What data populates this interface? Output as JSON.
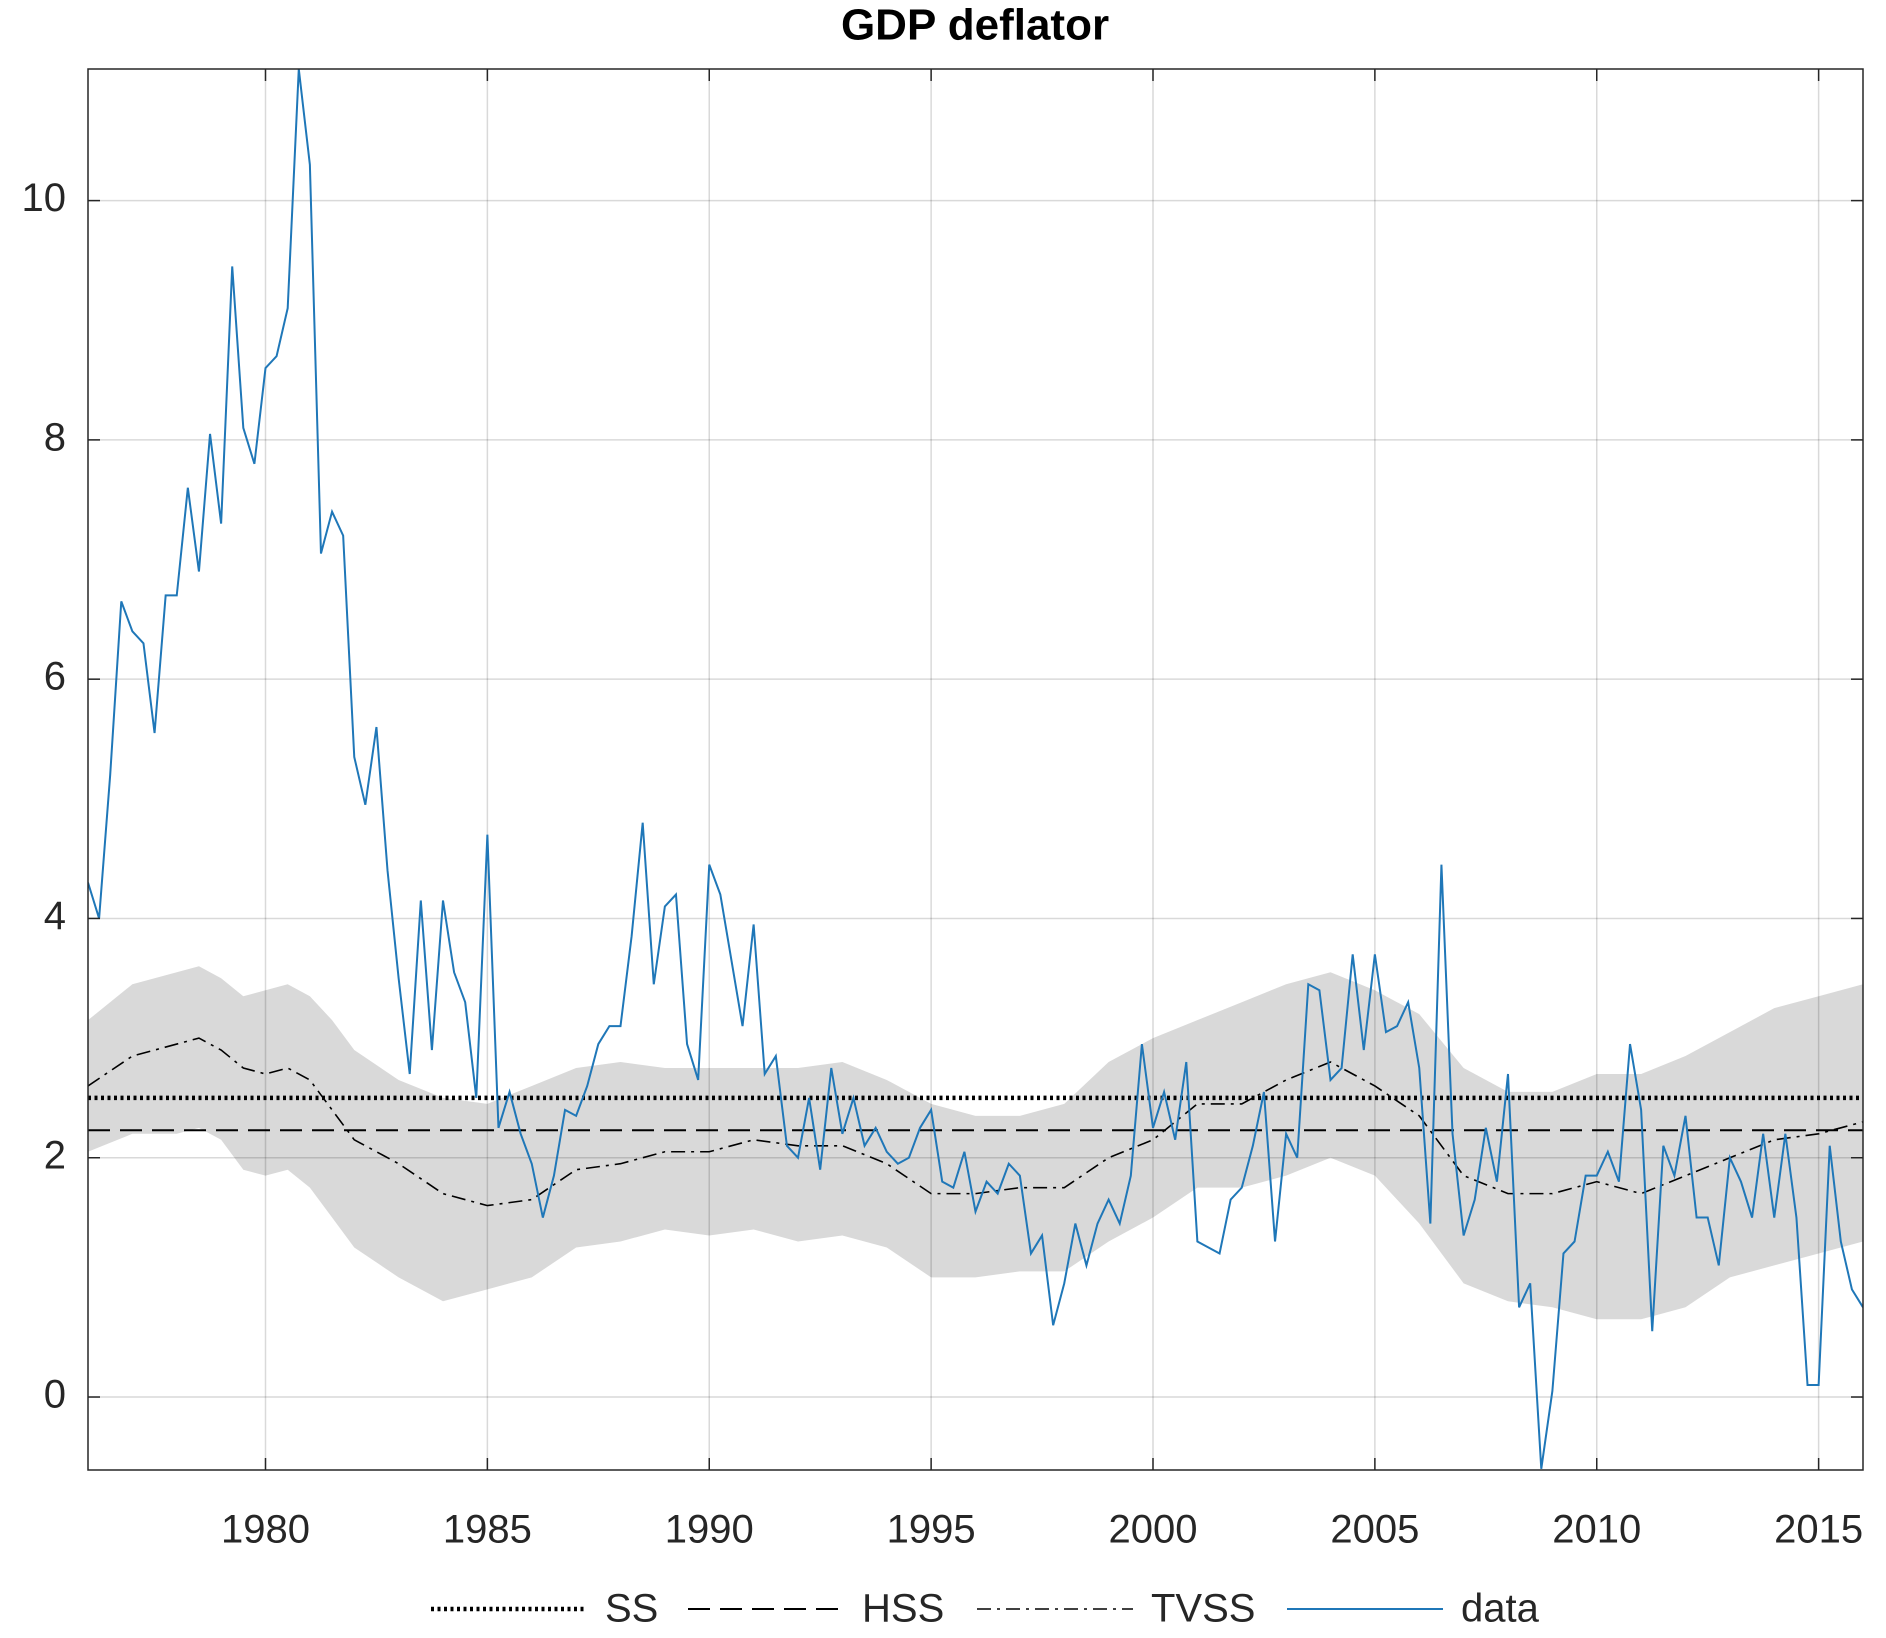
{
  "chart_data": {
    "type": "line",
    "title": "GDP deflator",
    "xlim": [
      1976,
      2016
    ],
    "ylim": [
      -0.61,
      11.1
    ],
    "xticks": [
      1980,
      1985,
      1990,
      1995,
      2000,
      2005,
      2010,
      2015
    ],
    "yticks": [
      0,
      2,
      4,
      6,
      8,
      10
    ],
    "grid": true,
    "legend": "bottom",
    "band": {
      "color": "#d9d9d9",
      "x": [
        1976,
        1977,
        1978,
        1978.5,
        1979,
        1979.5,
        1980,
        1980.5,
        1981,
        1981.5,
        1982,
        1983,
        1984,
        1985,
        1986,
        1987,
        1988,
        1989,
        1990,
        1991,
        1992,
        1993,
        1994,
        1995,
        1996,
        1997,
        1998,
        1999,
        2000,
        2001,
        2002,
        2003,
        2004,
        2005,
        2006,
        2007,
        2008,
        2009,
        2010,
        2011,
        2012,
        2013,
        2014,
        2015,
        2016
      ],
      "upper": [
        3.15,
        3.45,
        3.55,
        3.6,
        3.5,
        3.35,
        3.4,
        3.45,
        3.35,
        3.15,
        2.9,
        2.65,
        2.5,
        2.45,
        2.6,
        2.75,
        2.8,
        2.75,
        2.75,
        2.75,
        2.75,
        2.8,
        2.65,
        2.45,
        2.35,
        2.35,
        2.45,
        2.8,
        3.0,
        3.15,
        3.3,
        3.45,
        3.55,
        3.4,
        3.2,
        2.75,
        2.55,
        2.55,
        2.7,
        2.7,
        2.85,
        3.05,
        3.25,
        3.35,
        3.45
      ],
      "lower": [
        2.05,
        2.2,
        2.2,
        2.25,
        2.15,
        1.9,
        1.85,
        1.9,
        1.75,
        1.5,
        1.25,
        1.0,
        0.8,
        0.9,
        1.0,
        1.25,
        1.3,
        1.4,
        1.35,
        1.4,
        1.3,
        1.35,
        1.25,
        1.0,
        1.0,
        1.05,
        1.05,
        1.3,
        1.5,
        1.75,
        1.75,
        1.85,
        2.0,
        1.85,
        1.45,
        0.95,
        0.8,
        0.75,
        0.65,
        0.65,
        0.75,
        1.0,
        1.1,
        1.2,
        1.3
      ]
    },
    "series": [
      {
        "name": "SS",
        "color": "#000000",
        "style": "dotted",
        "x": [
          1976,
          2016
        ],
        "values": [
          2.5,
          2.5
        ]
      },
      {
        "name": "HSS",
        "color": "#000000",
        "style": "dashed",
        "x": [
          1976,
          2016
        ],
        "values": [
          2.23,
          2.23
        ]
      },
      {
        "name": "TVSS",
        "color": "#000000",
        "style": "dashdot",
        "x": [
          1976,
          1977,
          1978,
          1978.5,
          1979,
          1979.5,
          1980,
          1980.5,
          1981,
          1981.5,
          1982,
          1983,
          1984,
          1985,
          1986,
          1987,
          1988,
          1989,
          1990,
          1991,
          1992,
          1993,
          1994,
          1995,
          1996,
          1997,
          1998,
          1999,
          2000,
          2001,
          2002,
          2003,
          2004,
          2005,
          2006,
          2007,
          2008,
          2009,
          2010,
          2011,
          2012,
          2013,
          2014,
          2015,
          2016
        ],
        "values": [
          2.6,
          2.85,
          2.95,
          3.0,
          2.9,
          2.75,
          2.7,
          2.75,
          2.65,
          2.4,
          2.15,
          1.95,
          1.7,
          1.6,
          1.65,
          1.9,
          1.95,
          2.05,
          2.05,
          2.15,
          2.1,
          2.1,
          1.95,
          1.7,
          1.7,
          1.75,
          1.75,
          2.0,
          2.15,
          2.45,
          2.45,
          2.65,
          2.8,
          2.6,
          2.35,
          1.85,
          1.7,
          1.7,
          1.8,
          1.7,
          1.85,
          2.0,
          2.15,
          2.2,
          2.3
        ]
      },
      {
        "name": "data",
        "color": "#1f77b8",
        "style": "solid",
        "x": [
          1976,
          1976.25,
          1976.5,
          1976.75,
          1977,
          1977.25,
          1977.5,
          1977.75,
          1978,
          1978.25,
          1978.5,
          1978.75,
          1979,
          1979.25,
          1979.5,
          1979.75,
          1980,
          1980.25,
          1980.5,
          1980.75,
          1981,
          1981.25,
          1981.5,
          1981.75,
          1982,
          1982.25,
          1982.5,
          1982.75,
          1983,
          1983.25,
          1983.5,
          1983.75,
          1984,
          1984.25,
          1984.5,
          1984.75,
          1985,
          1985.25,
          1985.5,
          1985.75,
          1986,
          1986.25,
          1986.5,
          1986.75,
          1987,
          1987.25,
          1987.5,
          1987.75,
          1988,
          1988.25,
          1988.5,
          1988.75,
          1989,
          1989.25,
          1989.5,
          1989.75,
          1990,
          1990.25,
          1990.5,
          1990.75,
          1991,
          1991.25,
          1991.5,
          1991.75,
          1992,
          1992.25,
          1992.5,
          1992.75,
          1993,
          1993.25,
          1993.5,
          1993.75,
          1994,
          1994.25,
          1994.5,
          1994.75,
          1995,
          1995.25,
          1995.5,
          1995.75,
          1996,
          1996.25,
          1996.5,
          1996.75,
          1997,
          1997.25,
          1997.5,
          1997.75,
          1998,
          1998.25,
          1998.5,
          1998.75,
          1999,
          1999.25,
          1999.5,
          1999.75,
          2000,
          2000.25,
          2000.5,
          2000.75,
          2001,
          2001.25,
          2001.5,
          2001.75,
          2002,
          2002.25,
          2002.5,
          2002.75,
          2003,
          2003.25,
          2003.5,
          2003.75,
          2004,
          2004.25,
          2004.5,
          2004.75,
          2005,
          2005.25,
          2005.5,
          2005.75,
          2006,
          2006.25,
          2006.5,
          2006.75,
          2007,
          2007.25,
          2007.5,
          2007.75,
          2008,
          2008.25,
          2008.5,
          2008.75,
          2009,
          2009.25,
          2009.5,
          2009.75,
          2010,
          2010.25,
          2010.5,
          2010.75,
          2011,
          2011.25,
          2011.5,
          2011.75,
          2012,
          2012.25,
          2012.5,
          2012.75,
          2013,
          2013.25,
          2013.5,
          2013.75,
          2014,
          2014.25,
          2014.5,
          2014.75,
          2015,
          2015.25,
          2015.5,
          2015.75,
          2016
        ],
        "values": [
          4.3,
          4.0,
          5.2,
          6.65,
          6.4,
          6.3,
          5.55,
          6.7,
          6.7,
          7.6,
          6.9,
          8.05,
          7.3,
          9.45,
          8.1,
          7.8,
          8.6,
          8.7,
          9.1,
          11.1,
          10.3,
          7.05,
          7.4,
          7.2,
          5.35,
          4.95,
          5.6,
          4.4,
          3.5,
          2.7,
          4.15,
          2.9,
          4.15,
          3.55,
          3.3,
          2.5,
          4.7,
          2.25,
          2.55,
          2.2,
          1.95,
          1.5,
          1.85,
          2.4,
          2.35,
          2.6,
          2.95,
          3.1,
          3.1,
          3.85,
          4.8,
          3.45,
          4.1,
          4.2,
          2.95,
          2.65,
          4.45,
          4.2,
          3.65,
          3.1,
          3.95,
          2.7,
          2.85,
          2.1,
          2.0,
          2.5,
          1.9,
          2.75,
          2.2,
          2.5,
          2.1,
          2.25,
          2.05,
          1.95,
          2.0,
          2.25,
          2.4,
          1.8,
          1.75,
          2.05,
          1.55,
          1.8,
          1.7,
          1.95,
          1.85,
          1.2,
          1.35,
          0.6,
          0.95,
          1.45,
          1.1,
          1.45,
          1.65,
          1.45,
          1.85,
          2.95,
          2.25,
          2.55,
          2.15,
          2.8,
          1.3,
          1.25,
          1.2,
          1.65,
          1.75,
          2.1,
          2.55,
          1.3,
          2.2,
          2.0,
          3.45,
          3.4,
          2.65,
          2.75,
          3.7,
          2.9,
          3.7,
          3.05,
          3.1,
          3.3,
          2.75,
          1.45,
          4.45,
          2.2,
          1.35,
          1.65,
          2.25,
          1.8,
          2.7,
          0.75,
          0.95,
          -0.6,
          0.05,
          1.2,
          1.3,
          1.85,
          1.85,
          2.05,
          1.8,
          2.95,
          2.4,
          0.55,
          2.1,
          1.85,
          2.35,
          1.5,
          1.5,
          1.1,
          2.0,
          1.8,
          1.5,
          2.2,
          1.5,
          2.2,
          1.5,
          0.1,
          0.1,
          2.1,
          1.3,
          0.9,
          0.75
        ]
      }
    ]
  }
}
